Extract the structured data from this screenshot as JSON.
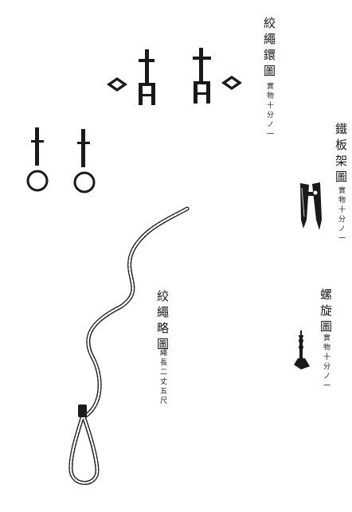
{
  "colors": {
    "ink": "#1a1a1a",
    "paper": "#ffffff"
  },
  "captions": {
    "rope_rings": {
      "title": "絞繩鐶圖",
      "note": "實物十分ノ一"
    },
    "iron_plate_frame": {
      "title": "鐵板架圖",
      "note": "實物十分ノ一"
    },
    "screw": {
      "title": "螺旋圖",
      "note": "實物十分ノ一"
    },
    "rope": {
      "title": "絞繩略圖",
      "note": "繩長二丈五尺"
    }
  }
}
